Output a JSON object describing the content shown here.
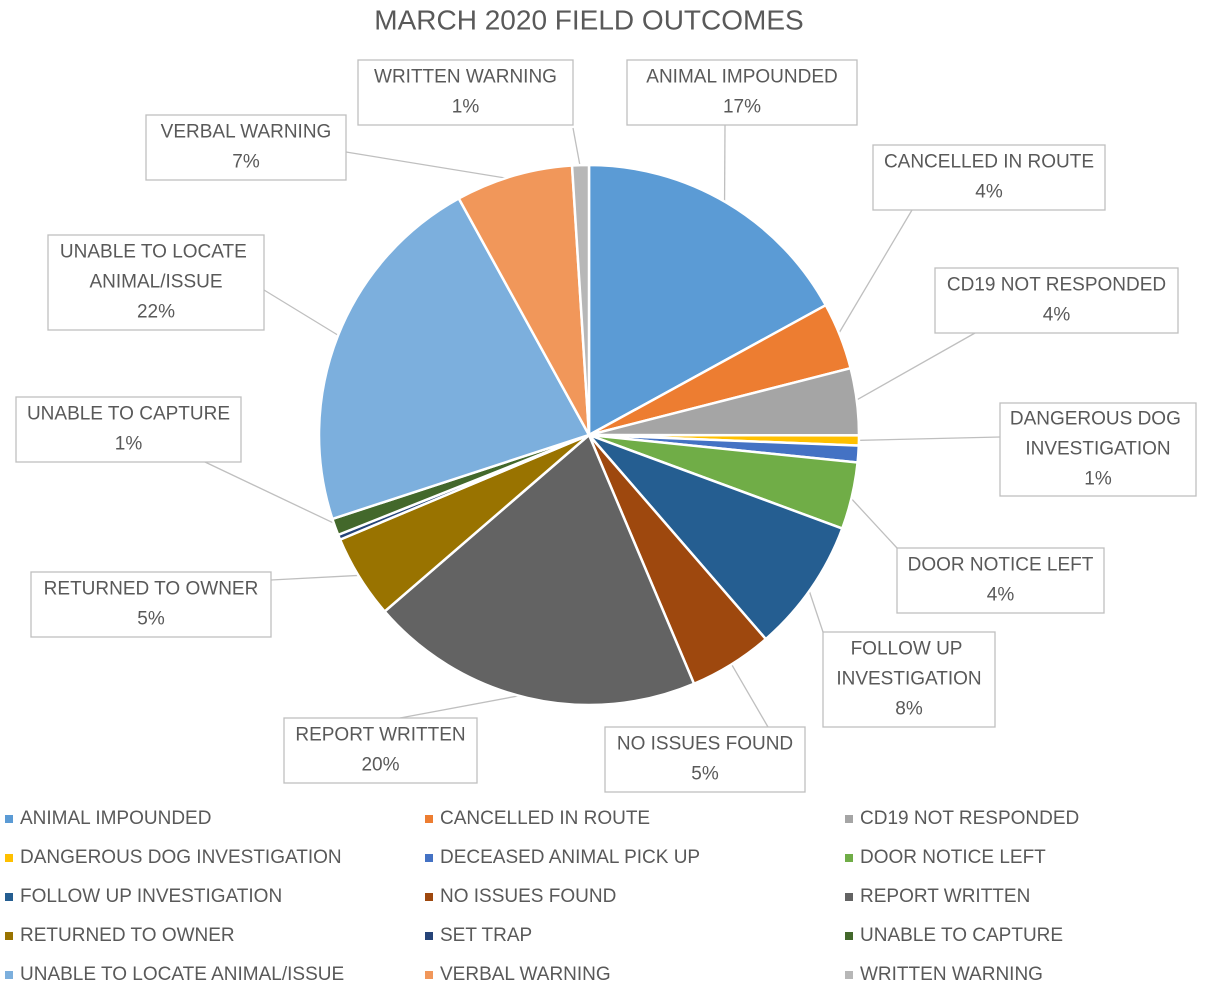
{
  "chart_data": {
    "type": "pie",
    "title": "MARCH 2020 FIELD OUTCOMES",
    "categories": [
      "ANIMAL IMPOUNDED",
      "CANCELLED IN ROUTE",
      "CD19 NOT RESPONDED",
      "DANGEROUS DOG INVESTIGATION",
      "DECEASED ANIMAL PICK UP",
      "DOOR NOTICE LEFT",
      "FOLLOW UP INVESTIGATION",
      "NO ISSUES FOUND",
      "REPORT WRITTEN",
      "RETURNED TO OWNER",
      "SET TRAP",
      "UNABLE TO CAPTURE",
      "UNABLE TO LOCATE ANIMAL/ISSUE",
      "VERBAL WARNING",
      "WRITTEN WARNING"
    ],
    "values": [
      17,
      4,
      4,
      0.6,
      1,
      4,
      8,
      5,
      20,
      5,
      0.3,
      1,
      22,
      7,
      1
    ],
    "value_labels": [
      "17%",
      "4%",
      "4%",
      "1%",
      null,
      "4%",
      "8%",
      "5%",
      "20%",
      "5%",
      null,
      "1%",
      "22%",
      "7%",
      "1%"
    ],
    "colors": [
      "#5b9bd5",
      "#ed7d31",
      "#a5a5a5",
      "#ffc000",
      "#4472c4",
      "#70ad47",
      "#255e91",
      "#9e480e",
      "#636363",
      "#997300",
      "#264478",
      "#43682b",
      "#7cafdd",
      "#f1975a",
      "#b7b7b7"
    ],
    "legend": "bottom"
  }
}
